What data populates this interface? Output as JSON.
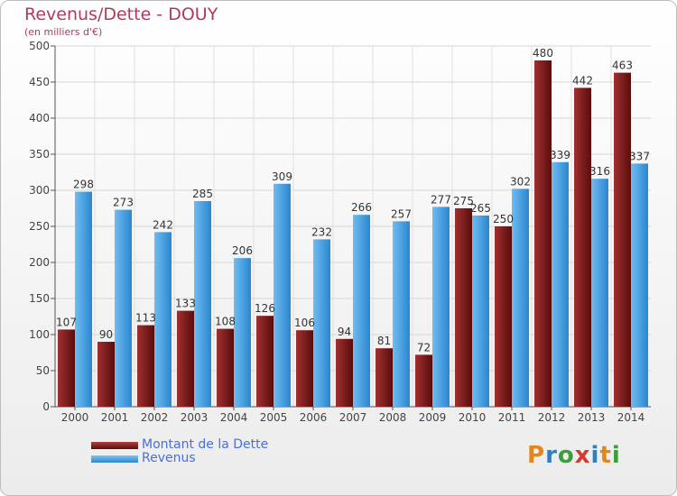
{
  "header": {
    "title": "Revenus/Dette - DOUY",
    "subtitle": "(en milliers d'€)"
  },
  "legend": {
    "items": [
      {
        "label": "Montant de la Dette",
        "color": "#7a1a1a"
      },
      {
        "label": "Revenus",
        "color": "#3d9be0"
      }
    ]
  },
  "logo": {
    "letters": [
      "P",
      "r",
      "o",
      "x",
      "i",
      "t",
      "i"
    ],
    "colors": [
      "#e0881b",
      "#2f7fc2",
      "#3a9e3a",
      "#d43b2c",
      "#2f7fc2",
      "#e0881b",
      "#3a9e3a"
    ]
  },
  "chart_data": {
    "type": "bar",
    "categories": [
      "2000",
      "2001",
      "2002",
      "2003",
      "2004",
      "2005",
      "2006",
      "2007",
      "2008",
      "2009",
      "2010",
      "2011",
      "2012",
      "2013",
      "2014"
    ],
    "series": [
      {
        "name": "Montant de la Dette",
        "color": "#7a1a1a",
        "values": [
          107,
          90,
          113,
          133,
          108,
          126,
          106,
          94,
          81,
          72,
          275,
          250,
          480,
          442,
          463
        ]
      },
      {
        "name": "Revenus",
        "color": "#3d9be0",
        "values": [
          298,
          273,
          242,
          285,
          206,
          309,
          232,
          266,
          257,
          277,
          265,
          302,
          339,
          316,
          337
        ]
      }
    ],
    "title": "Revenus/Dette - DOUY",
    "ylabel": "(en milliers d'€)",
    "ylim": [
      0,
      500
    ],
    "yticks": [
      0,
      50,
      100,
      150,
      200,
      250,
      300,
      350,
      400,
      450,
      500
    ],
    "grid": true,
    "legend_position": "bottom-left"
  }
}
